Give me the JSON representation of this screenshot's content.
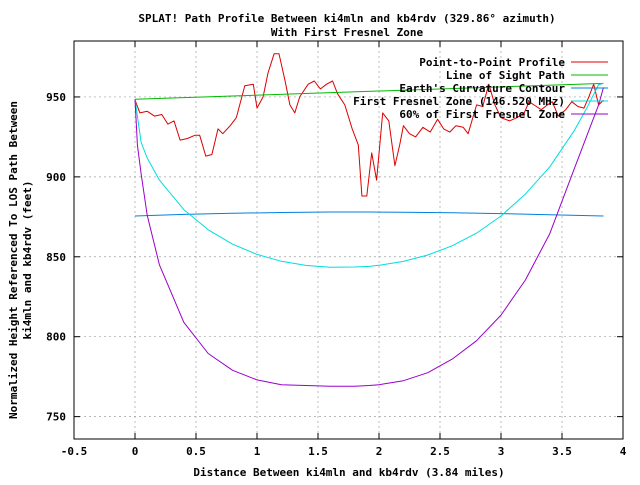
{
  "chart_data": {
    "type": "line",
    "title": "SPLAT! Path Profile Between ki4mln and kb4rdv (329.86° azimuth)",
    "subtitle": "With First Fresnel Zone",
    "xlabel": "Distance Between ki4mln and kb4rdv (3.84 miles)",
    "ylabel_lines": [
      "Normalized Height Referenced To LOS Path Between",
      "ki4mln and kb4rdv (feet)"
    ],
    "xlim": [
      -0.5,
      4
    ],
    "ylim": [
      736,
      985
    ],
    "x_ticks": [
      -0.5,
      0,
      0.5,
      1,
      1.5,
      2,
      2.5,
      3,
      3.5,
      4
    ],
    "x_tick_labels": [
      "-0.5",
      "0",
      "0.5",
      "1",
      "1.5",
      "2",
      "2.5",
      "3",
      "3.5",
      "4"
    ],
    "y_ticks": [
      750,
      800,
      850,
      900,
      950
    ],
    "y_tick_labels": [
      "750",
      "800",
      "850",
      "900",
      "950"
    ],
    "grid": true,
    "legend_position": "top-right",
    "series": [
      {
        "name": "Point-to-Point Profile",
        "color": "#dd0000",
        "x": [
          0,
          0.04,
          0.1,
          0.16,
          0.22,
          0.27,
          0.32,
          0.37,
          0.43,
          0.49,
          0.53,
          0.58,
          0.63,
          0.68,
          0.72,
          0.78,
          0.83,
          0.9,
          0.97,
          1.0,
          1.05,
          1.09,
          1.14,
          1.18,
          1.23,
          1.27,
          1.31,
          1.35,
          1.42,
          1.47,
          1.52,
          1.57,
          1.62,
          1.66,
          1.72,
          1.78,
          1.83,
          1.86,
          1.9,
          1.94,
          1.98,
          2.03,
          2.08,
          2.13,
          2.17,
          2.2,
          2.25,
          2.3,
          2.36,
          2.42,
          2.48,
          2.53,
          2.58,
          2.63,
          2.69,
          2.73,
          2.8,
          2.85,
          2.9,
          2.95,
          3.0,
          3.07,
          3.13,
          3.19,
          3.23,
          3.29,
          3.33,
          3.38,
          3.42,
          3.47,
          3.53,
          3.58,
          3.63,
          3.68,
          3.72,
          3.76,
          3.8,
          3.84
        ],
        "values": [
          948,
          940,
          941,
          938,
          939,
          933,
          935,
          923,
          924,
          926,
          926,
          913,
          914,
          930,
          927,
          932,
          937,
          957,
          958,
          943,
          950,
          965,
          977,
          977,
          960,
          945,
          940,
          950,
          958,
          960,
          955,
          958,
          960,
          952,
          945,
          930,
          920,
          888,
          888,
          915,
          898,
          940,
          935,
          907,
          920,
          932,
          927,
          925,
          931,
          928,
          936,
          930,
          928,
          932,
          931,
          927,
          945,
          944,
          958,
          945,
          937,
          935,
          937,
          940,
          947,
          944,
          942,
          945,
          947,
          938,
          942,
          947,
          944,
          943,
          950,
          958,
          945,
          948
        ]
      },
      {
        "name": "Line of Sight Path",
        "color": "#00bb00",
        "x": [
          0,
          3.84
        ],
        "values": [
          948.5,
          958.5
        ]
      },
      {
        "name": "Earth's Curvature Contour",
        "color": "#0080e0",
        "x": [
          0,
          0.4,
          0.8,
          1.2,
          1.6,
          1.92,
          2.2,
          2.6,
          3.0,
          3.4,
          3.84
        ],
        "values": [
          875.5,
          876.5,
          877.2,
          877.7,
          878.0,
          878.0,
          877.9,
          877.6,
          877.0,
          876.3,
          875.5
        ]
      },
      {
        "name": "First Fresnel Zone (146.520 MHz)",
        "color": "#00dddd",
        "x": [
          0,
          0.05,
          0.1,
          0.2,
          0.4,
          0.6,
          0.8,
          1.0,
          1.2,
          1.4,
          1.6,
          1.8,
          1.92,
          2.0,
          2.2,
          2.4,
          2.6,
          2.8,
          3.0,
          3.2,
          3.4,
          3.6,
          3.7,
          3.8,
          3.84
        ],
        "values": [
          948.5,
          921.6,
          911.8,
          898.0,
          879.5,
          866.9,
          857.9,
          851.5,
          847.2,
          844.6,
          843.5,
          843.6,
          844.0,
          844.7,
          847.1,
          851.1,
          856.9,
          864.8,
          875.5,
          889.2,
          906.3,
          928.9,
          942.6,
          957.7,
          958.5
        ]
      },
      {
        "name": "60% of First Fresnel Zone",
        "color": "#9900cc",
        "x": [
          0,
          0.02,
          0.05,
          0.1,
          0.2,
          0.4,
          0.6,
          0.8,
          1.0,
          1.2,
          1.4,
          1.6,
          1.8,
          1.92,
          2.0,
          2.2,
          2.4,
          2.6,
          2.8,
          3.0,
          3.2,
          3.4,
          3.6,
          3.7,
          3.8,
          3.84
        ],
        "values": [
          948.5,
          920.0,
          902.0,
          876.0,
          845.0,
          809.0,
          789.5,
          779.0,
          773.0,
          770.0,
          769.5,
          769.0,
          769.0,
          769.5,
          770.0,
          772.5,
          777.5,
          786.0,
          797.5,
          813.5,
          835.5,
          864.5,
          905.0,
          925.0,
          945.0,
          956.0
        ]
      }
    ]
  }
}
